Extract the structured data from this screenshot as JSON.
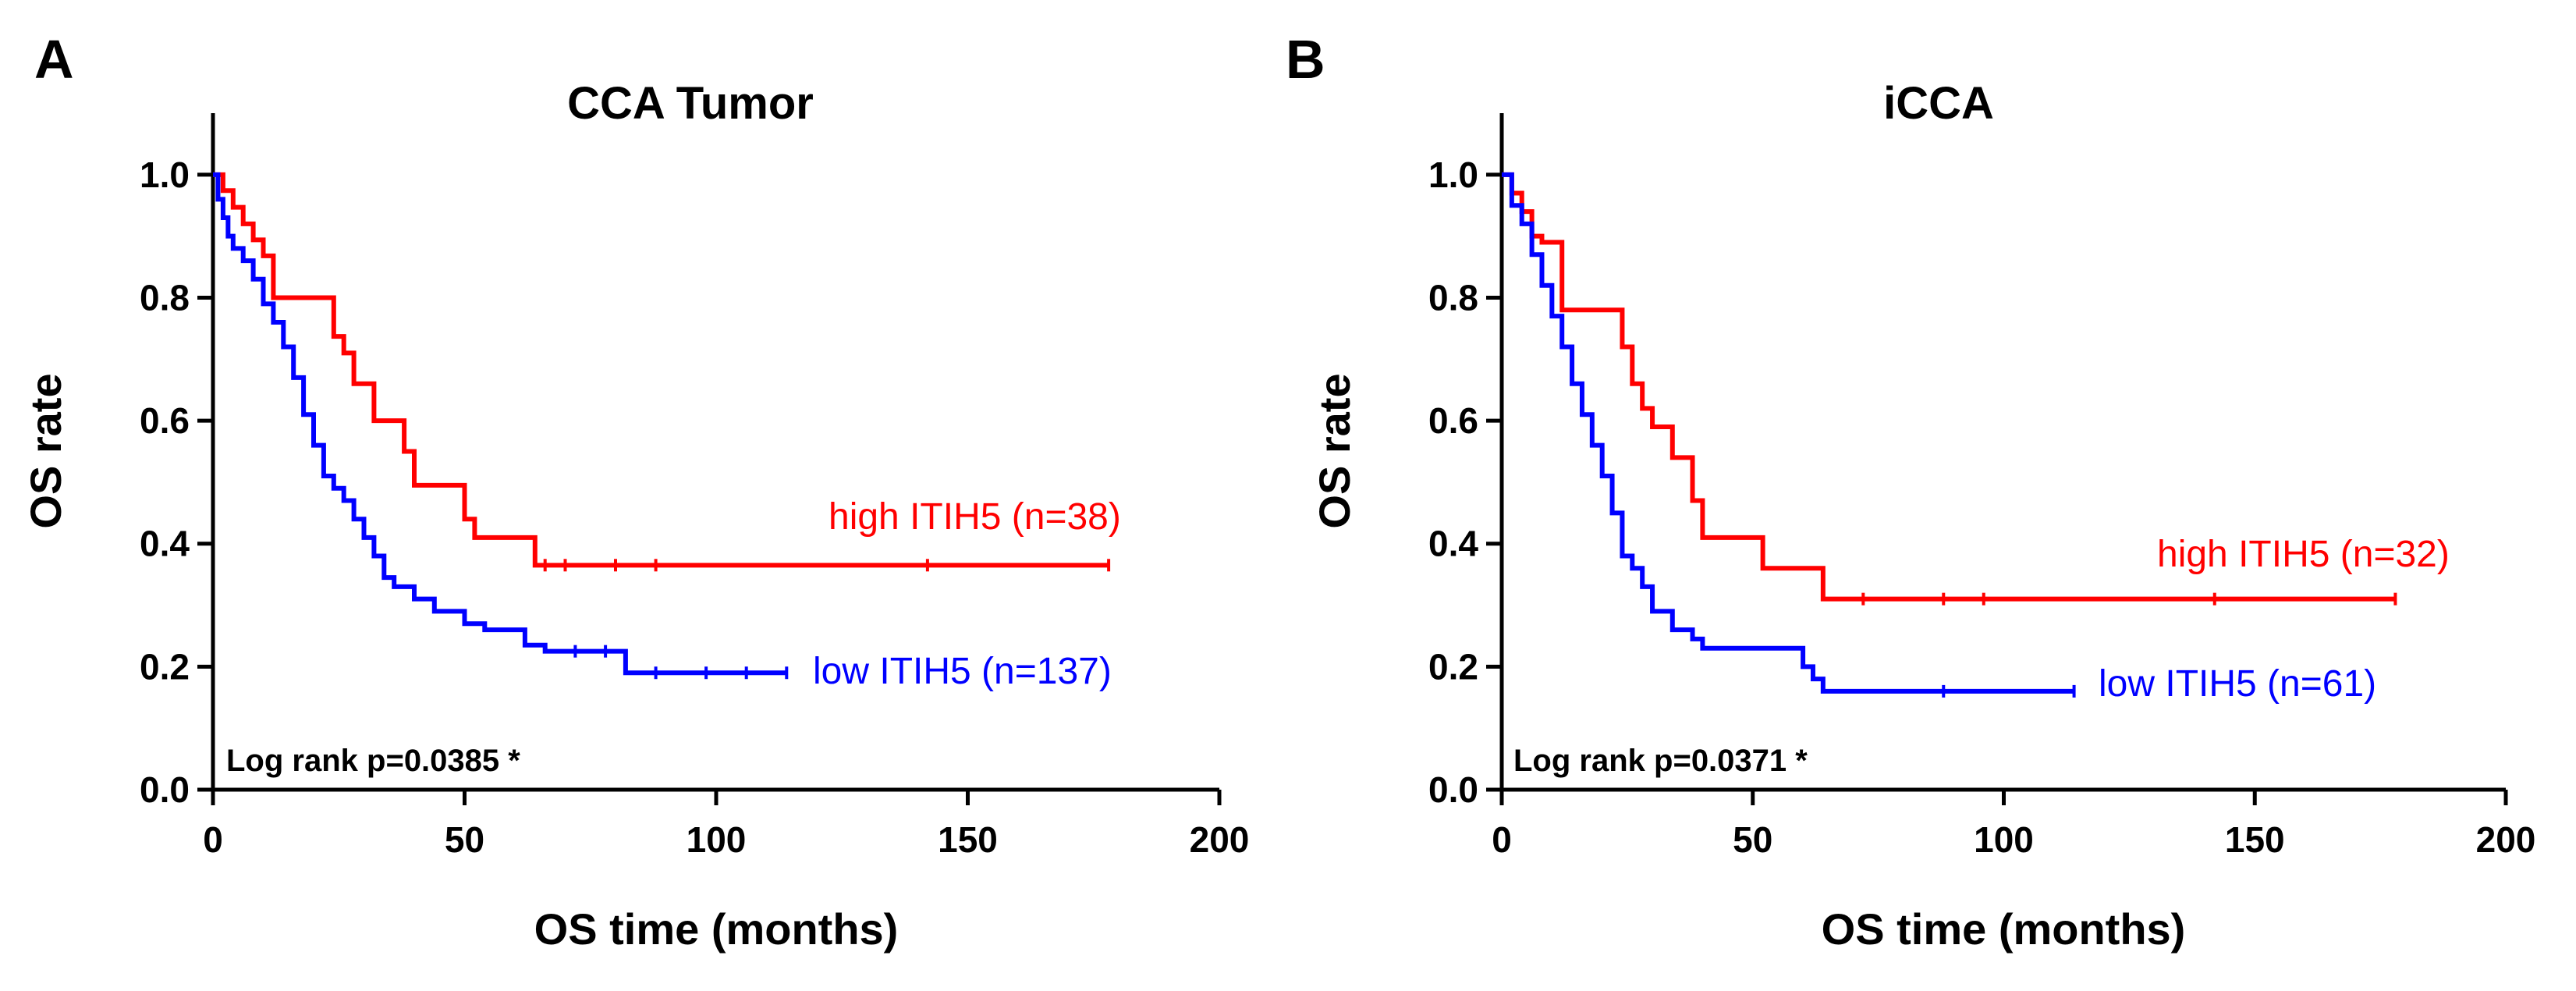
{
  "chart_data": [
    {
      "panel": "A",
      "type": "line",
      "subtype": "kaplan-meier",
      "title": "CCA Tumor",
      "xlabel": "OS time (months)",
      "ylabel": "OS rate",
      "xlim": [
        0,
        200
      ],
      "ylim": [
        0,
        1.1
      ],
      "xticks": [
        0,
        50,
        100,
        150,
        200
      ],
      "xtick_labels": [
        "0",
        "50",
        "100",
        "150",
        "200"
      ],
      "yticks": [
        0,
        0.2,
        0.4,
        0.6,
        0.8,
        1.0
      ],
      "ytick_labels": [
        "0.0",
        "0.2",
        "0.4",
        "0.6",
        "0.8",
        "1.0"
      ],
      "annotation": "Log rank p=0.0385 *",
      "series": [
        {
          "name": "high ITIH5 (n=38)",
          "color": "#ff0000",
          "x": [
            0,
            2,
            4,
            6,
            8,
            10,
            12,
            22,
            24,
            26,
            28,
            32,
            38,
            40,
            50,
            52,
            62,
            64,
            178
          ],
          "y": [
            1.0,
            0.974,
            0.947,
            0.92,
            0.894,
            0.868,
            0.8,
            0.8,
            0.737,
            0.71,
            0.66,
            0.6,
            0.55,
            0.495,
            0.44,
            0.41,
            0.41,
            0.365,
            0.365
          ],
          "censor_x": [
            66,
            70,
            80,
            88,
            142,
            178
          ],
          "censor_y": [
            0.365,
            0.365,
            0.365,
            0.365,
            0.365,
            0.365
          ]
        },
        {
          "name": "low ITIH5 (n=137)",
          "color": "#0000ff",
          "x": [
            0,
            1,
            2,
            3,
            4,
            6,
            8,
            10,
            12,
            14,
            16,
            18,
            20,
            22,
            24,
            26,
            28,
            30,
            32,
            34,
            36,
            40,
            44,
            50,
            54,
            62,
            66,
            82,
            114
          ],
          "y": [
            1.0,
            0.96,
            0.93,
            0.9,
            0.88,
            0.86,
            0.83,
            0.79,
            0.76,
            0.72,
            0.67,
            0.61,
            0.56,
            0.51,
            0.49,
            0.47,
            0.44,
            0.41,
            0.38,
            0.345,
            0.33,
            0.31,
            0.29,
            0.27,
            0.26,
            0.235,
            0.225,
            0.19,
            0.19
          ],
          "censor_x": [
            72,
            78,
            88,
            98,
            106,
            114
          ],
          "censor_y": [
            0.225,
            0.225,
            0.19,
            0.19,
            0.19,
            0.19
          ]
        }
      ]
    },
    {
      "panel": "B",
      "type": "line",
      "subtype": "kaplan-meier",
      "title": "iCCA",
      "xlabel": "OS time (months)",
      "ylabel": "OS rate",
      "xlim": [
        0,
        200
      ],
      "ylim": [
        0,
        1.1
      ],
      "xticks": [
        0,
        50,
        100,
        150,
        200
      ],
      "xtick_labels": [
        "0",
        "50",
        "100",
        "150",
        "200"
      ],
      "yticks": [
        0,
        0.2,
        0.4,
        0.6,
        0.8,
        1.0
      ],
      "ytick_labels": [
        "0.0",
        "0.2",
        "0.4",
        "0.6",
        "0.8",
        "1.0"
      ],
      "annotation": "Log rank p=0.0371 *",
      "series": [
        {
          "name": "high ITIH5 (n=32)",
          "color": "#ff0000",
          "x": [
            0,
            2,
            4,
            6,
            8,
            10,
            12,
            22,
            24,
            26,
            28,
            30,
            34,
            38,
            40,
            50,
            52,
            62,
            64,
            178
          ],
          "y": [
            1.0,
            0.97,
            0.94,
            0.9,
            0.89,
            0.89,
            0.78,
            0.78,
            0.72,
            0.66,
            0.62,
            0.59,
            0.54,
            0.47,
            0.41,
            0.41,
            0.36,
            0.36,
            0.31,
            0.31
          ],
          "censor_x": [
            72,
            88,
            96,
            142,
            178
          ],
          "censor_y": [
            0.31,
            0.31,
            0.31,
            0.31,
            0.31
          ]
        },
        {
          "name": "low ITIH5 (n=61)",
          "color": "#0000ff",
          "x": [
            0,
            2,
            4,
            6,
            8,
            10,
            12,
            14,
            16,
            18,
            20,
            22,
            24,
            26,
            28,
            30,
            34,
            38,
            40,
            46,
            52,
            60,
            62,
            64,
            114
          ],
          "y": [
            1.0,
            0.95,
            0.92,
            0.87,
            0.82,
            0.77,
            0.72,
            0.66,
            0.61,
            0.56,
            0.51,
            0.45,
            0.38,
            0.36,
            0.33,
            0.29,
            0.26,
            0.245,
            0.23,
            0.23,
            0.23,
            0.2,
            0.18,
            0.16,
            0.16
          ],
          "censor_x": [
            88,
            114
          ],
          "censor_y": [
            0.16,
            0.16
          ]
        }
      ]
    }
  ]
}
